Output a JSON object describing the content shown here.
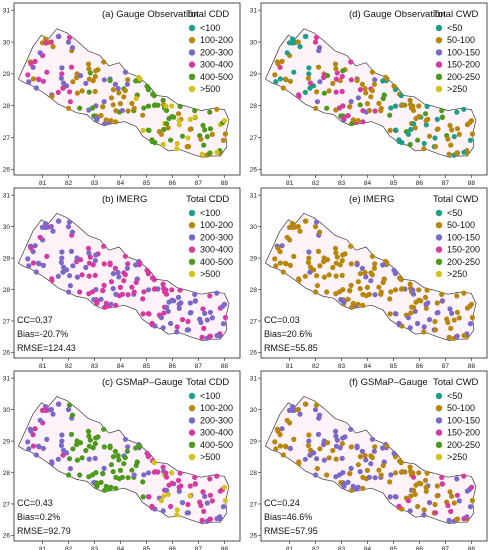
{
  "x_ticks": [
    "81",
    "82",
    "83",
    "84",
    "85",
    "86",
    "87",
    "88"
  ],
  "y_ticks": [
    "26",
    "27",
    "28",
    "29",
    "30",
    "31"
  ],
  "colors": [
    "#1e9e8a",
    "#b8860b",
    "#7b68c8",
    "#d63aa0",
    "#4c9a1c",
    "#d4c21a"
  ],
  "panels": [
    {
      "id": "a",
      "title": "(a) Gauge Observation",
      "legend_title": "Total CDD",
      "legend": [
        "<100",
        "100-200",
        "200-300",
        "300-400",
        "400-500",
        ">500"
      ],
      "stats": []
    },
    {
      "id": "d",
      "title": "(d) Gauge Observation",
      "legend_title": "Total CWD",
      "legend": [
        "<50",
        "50-100",
        "100-150",
        "150-200",
        "200-250",
        ">250"
      ],
      "stats": []
    },
    {
      "id": "b",
      "title": "(b) IMERG",
      "legend_title": "Total CDD",
      "legend": [
        "<100",
        "100-200",
        "200-300",
        "300-400",
        "400-500",
        ">500"
      ],
      "stats": [
        "CC=0.37",
        "Bias=-20.7%",
        "RMSE=124.43"
      ]
    },
    {
      "id": "e",
      "title": "(e) IMERG",
      "legend_title": "Total CWD",
      "legend": [
        "<50",
        "50-100",
        "100-150",
        "150-200",
        "200-250",
        ">250"
      ],
      "stats": [
        "CC=0.03",
        "Bias=20.6%",
        "RMSE=55.85"
      ]
    },
    {
      "id": "c",
      "title": "(c) GSMaP–Gauge",
      "legend_title": "Total CDD",
      "legend": [
        "<100",
        "100-200",
        "200-300",
        "300-400",
        "400-500",
        ">500"
      ],
      "stats": [
        "CC=0.43",
        "Bias=0.2%",
        "RMSE=92.79"
      ]
    },
    {
      "id": "f",
      "title": "(f) GSMaP–Gauge",
      "legend_title": "Total CWD",
      "legend": [
        "<50",
        "50-100",
        "100-150",
        "150-200",
        "200-250",
        ">250"
      ],
      "stats": [
        "CC=0.24",
        "Bias=46.6%",
        "RMSE=57.95"
      ]
    }
  ]
}
